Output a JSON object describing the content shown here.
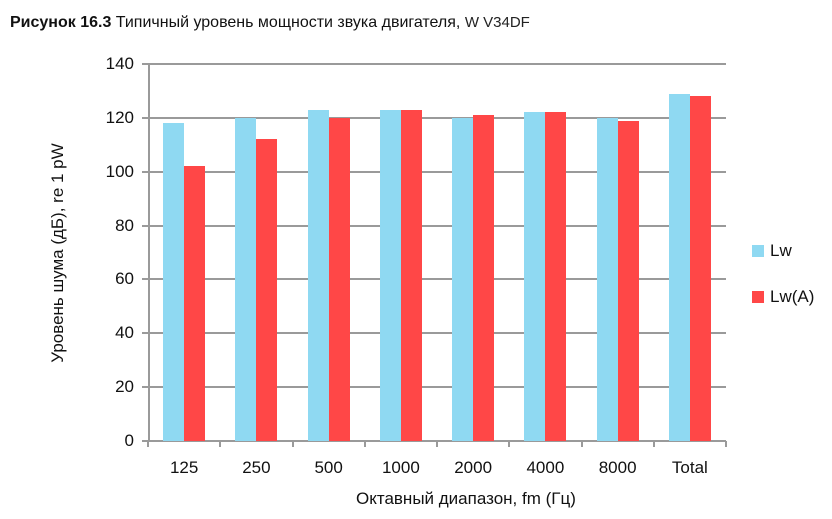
{
  "header": {
    "figure_label": "Рисунок 16.3",
    "title": "Типичный уровень мощности звука двигателя,",
    "model": "W V34DF"
  },
  "colors": {
    "lw": "#8fd9f2",
    "lwa": "#ff4747",
    "grid": "#9a9a9a"
  },
  "chart_data": {
    "type": "bar",
    "title": "Рисунок 16.3 Типичный уровень мощности звука двигателя, W V34DF",
    "xlabel": "Октавный диапазон, fm (Гц)",
    "ylabel": "Уровень шума (дБ), re 1 pW",
    "categories": [
      "125",
      "250",
      "500",
      "1000",
      "2000",
      "4000",
      "8000",
      "Total"
    ],
    "series": [
      {
        "name": "Lw",
        "values": [
          118,
          120,
          123,
          123,
          120,
          122,
          120,
          129
        ]
      },
      {
        "name": "Lw(A)",
        "values": [
          102,
          112,
          120,
          123,
          121,
          122,
          119,
          128
        ]
      }
    ],
    "ylim": [
      0,
      140
    ],
    "yticks": [
      0,
      20,
      40,
      60,
      80,
      100,
      120,
      140
    ],
    "grid": true,
    "legend_position": "right"
  }
}
